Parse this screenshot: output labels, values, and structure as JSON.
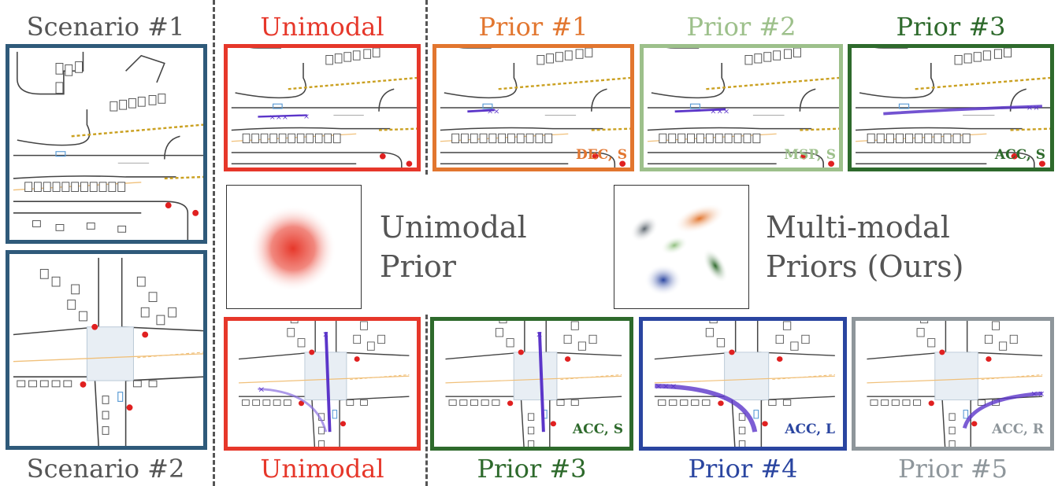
{
  "colors": {
    "scenario": "#2f5a7a",
    "unimodal": "#e6372a",
    "prior1": "#e2762f",
    "prior2": "#9dc08b",
    "prior3": "#2e6a2c",
    "prior4": "#2a45a0",
    "prior5": "#8e969b",
    "trajectory": "#5b35c9",
    "label_gray": "#555555"
  },
  "top_labels": {
    "scenario1": "Scenario #1",
    "unimodal": "Unimodal",
    "prior1": "Prior #1",
    "prior2": "Prior #2",
    "prior3": "Prior #3"
  },
  "bottom_labels": {
    "scenario2": "Scenario #2",
    "unimodal": "Unimodal",
    "prior3": "Prior #3",
    "prior4": "Prior #4",
    "prior5": "Prior #5"
  },
  "tags": {
    "top_prior1": "DEC, S",
    "top_prior2": "MSP, S",
    "top_prior3": "ACC, S",
    "bottom_prior3": "ACC, S",
    "bottom_prior4": "ACC, L",
    "bottom_prior5": "ACC, R"
  },
  "legend": {
    "unimodal_line1": "Unimodal",
    "unimodal_line2": "Prior",
    "multimodal_line1": "Multi-modal",
    "multimodal_line2": "Priors (Ours)"
  }
}
